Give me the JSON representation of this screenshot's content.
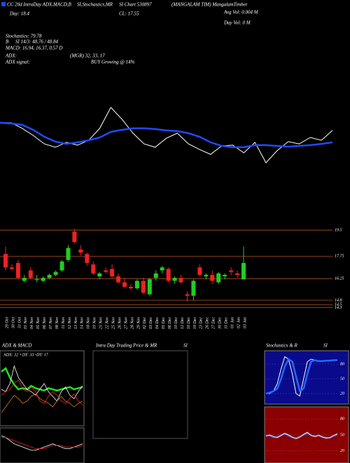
{
  "header": {
    "lines": [
      "CC 20d IntraDay ADX,MACD,B",
      "SI,Stochastics,MR",
      "SI Chart 530897",
      "(MANGALAM TIM) MangalamTimber",
      "Day: 18.4",
      "CL: 17.55",
      "Avg Vol: 0.004  M",
      "Day Vol: 0  M",
      "Stochastics: 79.78",
      "B",
      "SI 14/3: 48.76 / 48.84",
      "MACD: 16.94, 16.37, 0.57 D",
      "ADX:",
      "(MGR) 32, 33, 17",
      "ADX  signal:",
      "BUY Growing @ 14%"
    ]
  },
  "chart_data": [
    {
      "type": "line",
      "ylim": [
        14,
        20
      ],
      "series": [
        {
          "color": "#ffffff",
          "values": [
            18.69,
            18.69,
            18.39,
            18.01,
            17.56,
            17.38,
            17.64,
            17.49,
            17.75,
            18.39,
            19.51,
            18.88,
            18.13,
            17.56,
            17.38,
            17.86,
            18.13,
            17.56,
            17.26,
            17.0,
            17.45,
            17.49,
            17.08,
            17.64,
            16.55,
            17.19,
            17.68,
            17.56,
            17.9,
            17.75,
            18.28
          ]
        },
        {
          "color": "#1e4bff",
          "values": [
            18.69,
            18.65,
            18.58,
            18.31,
            17.94,
            17.68,
            17.56,
            17.64,
            17.75,
            17.9,
            18.2,
            18.31,
            18.39,
            18.39,
            18.35,
            18.28,
            18.24,
            18.13,
            17.94,
            17.64,
            17.45,
            17.38,
            17.38,
            17.49,
            17.49,
            17.45,
            17.41,
            17.45,
            17.49,
            17.56,
            17.64
          ]
        }
      ]
    },
    {
      "type": "candlestick",
      "ylim": [
        14,
        20.35
      ],
      "yticks": [
        19.5,
        17.75,
        16.25,
        14.8,
        14.5,
        14.3
      ],
      "grid_color": "#b8541c",
      "up_color": "#22cc22",
      "down_color": "#ee2222",
      "categories": [
        "29 Oct",
        "30 Oct",
        "31 Oct",
        "01 Nov",
        "04 Nov",
        "05 Nov",
        "06 Nov",
        "07 Nov",
        "08 Nov",
        "11 Nov",
        "12 Nov",
        "13 Nov",
        "14 Nov",
        "18 Nov",
        "19 Nov",
        "21 Nov",
        "22 Nov",
        "25 Nov",
        "26 Nov",
        "27 Nov",
        "28 Nov",
        "29 Nov",
        "02 Dec",
        "03 Dec",
        "04 Dec",
        "05 Dec",
        "06 Dec",
        "10 Dec",
        "12 Dec",
        "16 Dec",
        "19 Dec",
        "23 Dec",
        "26 Dec",
        "27 Dec",
        "30 Dec",
        "31 Dec",
        "01 Jan",
        "02 Jan",
        "03 Jan"
      ],
      "open": [
        17.9,
        17.0,
        17.3,
        16.1,
        16.8,
        16.2,
        16.1,
        16.3,
        16.5,
        16.8,
        17.5,
        19.4,
        18.2,
        17.9,
        17.2,
        16.4,
        16.8,
        16.9,
        16.4,
        16.0,
        15.7,
        15.6,
        16.1,
        15.2,
        16.3,
        16.8,
        16.9,
        16.1,
        16.3,
        15.2,
        15.1,
        17.0,
        16.4,
        16.5,
        16.0,
        16.4,
        16.8,
        16.6,
        16.2
      ],
      "high": [
        18.4,
        17.2,
        17.5,
        16.5,
        17.0,
        16.5,
        16.4,
        16.6,
        16.8,
        17.5,
        18.5,
        19.6,
        18.5,
        18.0,
        17.4,
        16.7,
        17.0,
        17.2,
        16.6,
        16.3,
        15.9,
        16.2,
        16.3,
        16.3,
        16.8,
        17.1,
        17.0,
        16.4,
        16.5,
        15.4,
        16.2,
        17.2,
        16.6,
        16.8,
        16.7,
        16.6,
        17.0,
        16.8,
        18.4
      ],
      "low": [
        16.8,
        16.8,
        16.2,
        16.0,
        16.2,
        16.0,
        16.0,
        16.2,
        16.4,
        16.7,
        17.4,
        18.6,
        17.8,
        17.1,
        16.5,
        16.2,
        16.6,
        16.3,
        15.9,
        15.6,
        15.5,
        15.5,
        15.2,
        15.1,
        16.1,
        16.6,
        16.0,
        15.9,
        15.9,
        14.7,
        14.8,
        16.4,
        16.2,
        15.9,
        15.9,
        16.2,
        16.5,
        16.3,
        16.2
      ],
      "close": [
        17.0,
        16.9,
        16.3,
        16.3,
        16.3,
        16.2,
        16.3,
        16.5,
        16.7,
        17.4,
        18.3,
        18.7,
        18.0,
        17.3,
        16.6,
        16.6,
        16.7,
        16.4,
        16.0,
        15.7,
        15.6,
        16.1,
        15.3,
        16.2,
        16.6,
        17.0,
        16.1,
        16.3,
        16.0,
        15.1,
        16.1,
        16.5,
        16.5,
        16.1,
        16.6,
        16.5,
        16.7,
        16.5,
        17.3
      ]
    },
    {
      "type": "line",
      "title": "ADX  & MACD",
      "annotation": "ADX: 32  +DY: 33  -DY: 17",
      "ylim": [
        0,
        60
      ],
      "series": [
        {
          "color": "#22dd22",
          "values": [
            45,
            48,
            40,
            34,
            30,
            31,
            30,
            33,
            31,
            30,
            29,
            31,
            30,
            29,
            30,
            31,
            32,
            30,
            31,
            32
          ]
        },
        {
          "color": "#ffffff",
          "values": [
            30,
            28,
            35,
            50,
            40,
            35,
            30,
            28,
            25,
            30,
            35,
            28,
            24,
            20,
            28,
            32,
            25,
            22,
            28,
            33
          ]
        },
        {
          "color": "#ee2222",
          "values": [
            25,
            28,
            30,
            35,
            38,
            30,
            28,
            32,
            28,
            20,
            18,
            24,
            28,
            25,
            20,
            18,
            22,
            26,
            20,
            17
          ]
        },
        {
          "color": "#e07a20",
          "values": [
            10,
            15,
            20,
            25,
            22,
            18,
            20,
            24,
            26,
            22,
            20,
            18,
            15,
            20,
            24,
            20,
            18,
            15,
            18,
            20
          ]
        }
      ]
    },
    {
      "type": "line",
      "ylim": [
        -1,
        1
      ],
      "series": [
        {
          "color": "#ffffff",
          "values": [
            0.6,
            0.5,
            0.3,
            0.1,
            0.0,
            -0.1,
            -0.2,
            -0.3,
            -0.3,
            -0.2,
            -0.1,
            0.0,
            0.1,
            0.0,
            -0.1,
            -0.2,
            -0.2,
            -0.1,
            0.0,
            0.1
          ]
        },
        {
          "color": "#ee2222",
          "values": [
            0.5,
            0.5,
            0.4,
            0.3,
            0.2,
            0.1,
            0.0,
            -0.1,
            -0.2,
            -0.2,
            -0.2,
            -0.1,
            0.0,
            0.0,
            0.0,
            -0.1,
            -0.1,
            -0.1,
            -0.1,
            0.0
          ]
        }
      ]
    },
    {
      "type": "empty",
      "title": "Intra  Day Trading Price  & MR",
      "subtitle": "SI"
    },
    {
      "type": "line",
      "title": "Stochastics & R",
      "subtitle": "SI",
      "ylim": [
        0,
        100
      ],
      "yticks": [
        80,
        50,
        20
      ],
      "series": [
        {
          "color": "#ffffff",
          "values": [
            20,
            20,
            25,
            40,
            70,
            95,
            90,
            60,
            20,
            15,
            50,
            85,
            90,
            88,
            85,
            87,
            86,
            88,
            87,
            88
          ]
        },
        {
          "color": "#1e6bff",
          "values": [
            20,
            22,
            25,
            30,
            50,
            75,
            90,
            85,
            55,
            25,
            30,
            60,
            85,
            88,
            86,
            86,
            87,
            87,
            88,
            88
          ]
        }
      ]
    },
    {
      "type": "line",
      "ylim": [
        0,
        100
      ],
      "yticks": [
        80,
        50,
        20
      ],
      "series": [
        {
          "color": "#1e6bff",
          "values": [
            50,
            48,
            45,
            47,
            50,
            52,
            48,
            45,
            44,
            47,
            50,
            53,
            50,
            48,
            50,
            47,
            45,
            44,
            48,
            50
          ]
        },
        {
          "color": "#ffffff",
          "values": [
            48,
            50,
            47,
            45,
            49,
            53,
            50,
            46,
            43,
            46,
            51,
            55,
            49,
            47,
            49,
            46,
            44,
            45,
            49,
            52
          ]
        }
      ]
    }
  ]
}
